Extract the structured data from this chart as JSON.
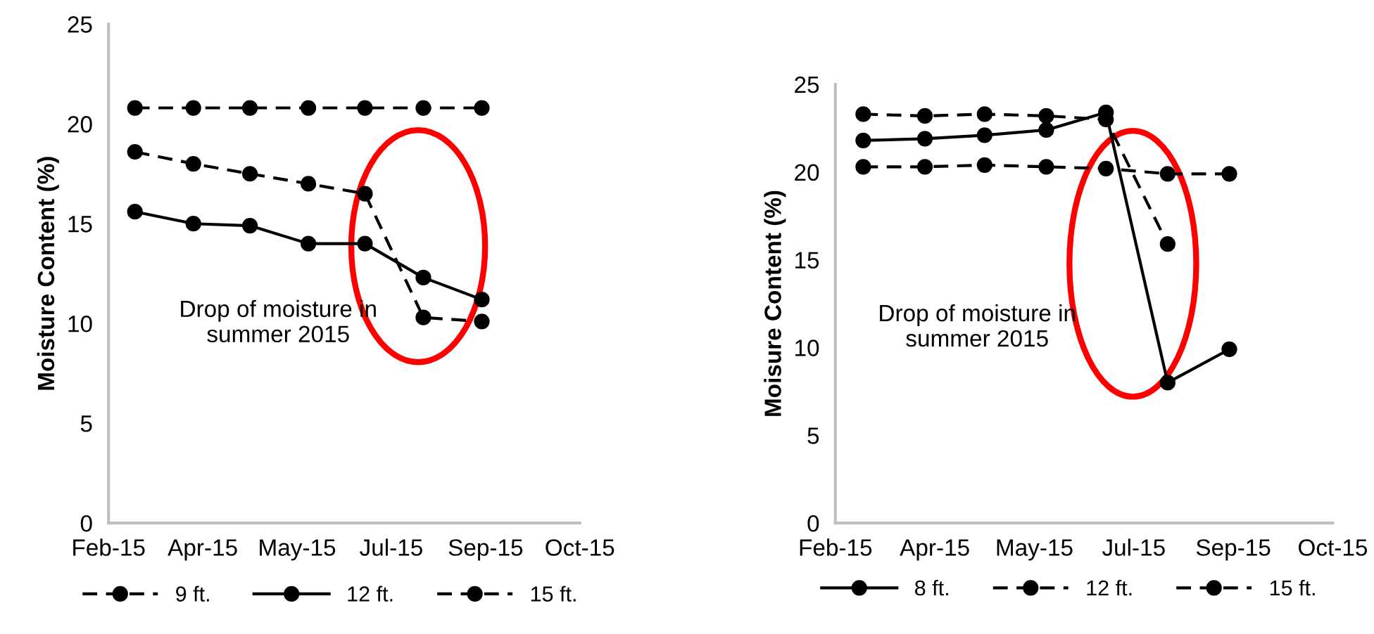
{
  "chart_data": [
    {
      "type": "line",
      "ylabel": "Moisture Content (%)",
      "annotations": [
        "Drop of moisture in\nsummer 2015"
      ],
      "x": [
        "2015-03-01",
        "2015-04-01",
        "2015-05-01",
        "2015-06-01",
        "2015-07-01",
        "2015-08-01",
        "2015-09-01"
      ],
      "series": [
        {
          "name": "9 ft.",
          "color": "#000000",
          "line_style": "dashed",
          "values": [
            18.6,
            18.0,
            17.5,
            17.0,
            16.5,
            10.3,
            10.1
          ]
        },
        {
          "name": "12 ft.",
          "color": "#000000",
          "line_style": "solid",
          "values": [
            15.6,
            15.0,
            14.9,
            14.0,
            14.0,
            12.3,
            11.2
          ]
        },
        {
          "name": "15 ft.",
          "color": "#000000",
          "line_style": "dashed",
          "values": [
            20.8,
            20.8,
            20.8,
            20.8,
            20.8,
            20.8,
            20.8
          ]
        }
      ],
      "xlim": [
        "2015-02-15",
        "2015-10-23"
      ],
      "xticks": [
        {
          "value": "2015-02-15",
          "label": "Feb-15"
        },
        {
          "value": "2015-04-06",
          "label": "Apr-15"
        },
        {
          "value": "2015-05-26",
          "label": "May-15"
        },
        {
          "value": "2015-07-15",
          "label": "Jul-15"
        },
        {
          "value": "2015-09-03",
          "label": "Sep-15"
        },
        {
          "value": "2015-10-23",
          "label": "Oct-15"
        }
      ],
      "ylim": [
        0,
        25
      ],
      "yticks": [
        0,
        5,
        10,
        15,
        20,
        25
      ],
      "grid": false,
      "legend": "bottom",
      "marker": "circle"
    },
    {
      "type": "line",
      "ylabel": "Moisure Content (%)",
      "annotations": [
        "Drop of moisture in\nsummer 2015"
      ],
      "x": [
        "2015-03-01",
        "2015-04-01",
        "2015-05-01",
        "2015-06-01",
        "2015-07-01",
        "2015-08-01",
        "2015-09-01"
      ],
      "series": [
        {
          "name": "8 ft.",
          "color": "#000000",
          "line_style": "solid",
          "values": [
            21.8,
            21.9,
            22.1,
            22.4,
            23.4,
            8.0,
            9.9
          ]
        },
        {
          "name": "12 ft.",
          "color": "#000000",
          "line_style": "dashed",
          "values": [
            23.3,
            23.2,
            23.3,
            23.2,
            23.0,
            15.9,
            null
          ]
        },
        {
          "name": "15 ft.",
          "color": "#000000",
          "line_style": "dashed",
          "values": [
            20.3,
            20.3,
            20.4,
            20.3,
            20.2,
            19.9,
            19.9
          ]
        }
      ],
      "xlim": [
        "2015-02-15",
        "2015-10-23"
      ],
      "xticks": [
        {
          "value": "2015-02-15",
          "label": "Feb-15"
        },
        {
          "value": "2015-04-06",
          "label": "Apr-15"
        },
        {
          "value": "2015-05-26",
          "label": "May-15"
        },
        {
          "value": "2015-07-15",
          "label": "Jul-15"
        },
        {
          "value": "2015-09-03",
          "label": "Sep-15"
        },
        {
          "value": "2015-10-23",
          "label": "Oct-15"
        }
      ],
      "ylim": [
        0,
        25
      ],
      "yticks": [
        0,
        5,
        10,
        15,
        20,
        25
      ],
      "grid": false,
      "legend": "bottom",
      "marker": "circle"
    }
  ]
}
